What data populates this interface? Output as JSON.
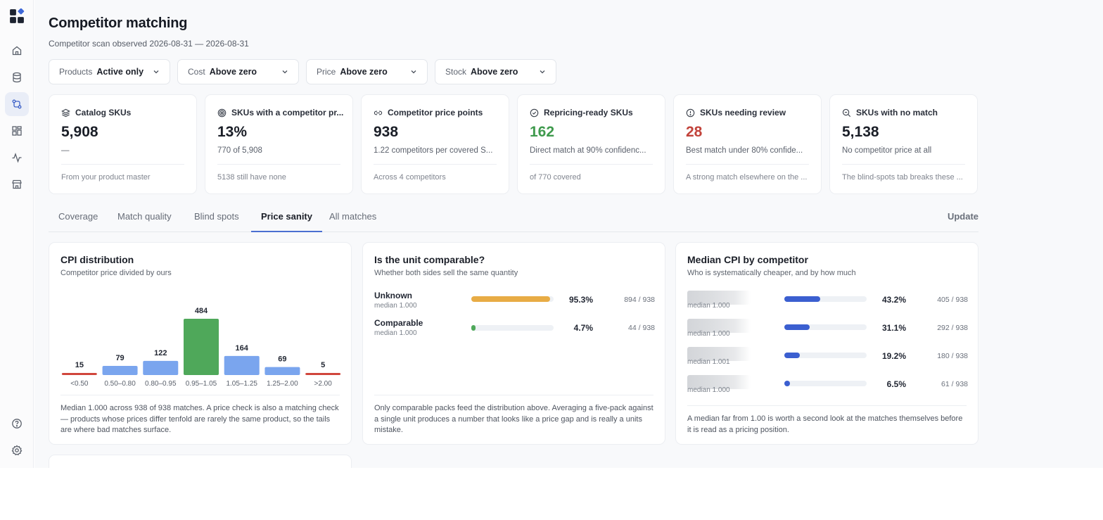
{
  "page": {
    "title": "Competitor matching",
    "subtitle": "Competitor scan observed 2026-08-31 — 2026-08-31"
  },
  "filters": [
    {
      "label": "Products",
      "value": "Active only"
    },
    {
      "label": "Cost",
      "value": "Above zero"
    },
    {
      "label": "Price",
      "value": "Above zero"
    },
    {
      "label": "Stock",
      "value": "Above zero"
    }
  ],
  "sidebar": {
    "items": [
      "grid-logo-icon",
      "home-icon",
      "database-icon",
      "matching-icon",
      "dashboard-icon",
      "activity-icon",
      "store-icon",
      "help-icon",
      "settings-icon"
    ]
  },
  "kpis": [
    {
      "icon": "layers-icon",
      "title": "Catalog SKUs",
      "value": "5,908",
      "sub": "—",
      "foot": "From your product master",
      "tone": "default"
    },
    {
      "icon": "target-icon",
      "title": "SKUs with a competitor pr...",
      "value": "13%",
      "sub": "770 of 5,908",
      "foot": "5138 still have none",
      "tone": "default"
    },
    {
      "icon": "link-icon",
      "title": "Competitor price points",
      "value": "938",
      "sub": "1.22 competitors per covered S...",
      "foot": "Across 4 competitors",
      "tone": "default"
    },
    {
      "icon": "check-circle-icon",
      "title": "Repricing-ready SKUs",
      "value": "162",
      "sub": "Direct match at 90% confidenc...",
      "foot": "of 770 covered",
      "tone": "green"
    },
    {
      "icon": "alert-circle-icon",
      "title": "SKUs needing review",
      "value": "28",
      "sub": "Best match under 80% confide...",
      "foot": "A strong match elsewhere on the ...",
      "tone": "red"
    },
    {
      "icon": "search-zoom-icon",
      "title": "SKUs with no match",
      "value": "5,138",
      "sub": "No competitor price at all",
      "foot": "The blind-spots tab breaks these ...",
      "tone": "default"
    }
  ],
  "tabs": [
    "Coverage",
    "Match quality",
    "Blind spots",
    "Price sanity",
    "All matches"
  ],
  "active_tab": "Price sanity",
  "update_label": "Update",
  "cpi_panel": {
    "title": "CPI distribution",
    "subtitle": "Competitor price divided by ours",
    "note": "Median 1.000 across 938 of 938 matches. A price check is also a matching check — products whose prices differ tenfold are rarely the same product, so the tails are where bad matches surface."
  },
  "chart_data": {
    "type": "bar",
    "title": "CPI distribution",
    "categories": [
      "<0.50",
      "0.50–0.80",
      "0.80–0.95",
      "0.95–1.05",
      "1.05–1.25",
      "1.25–2.00",
      ">2.00"
    ],
    "values": [
      15,
      79,
      122,
      484,
      164,
      69,
      5
    ],
    "colors": [
      "#d0463c",
      "#7aa5ee",
      "#7aa5ee",
      "#4fa85a",
      "#7aa5ee",
      "#7aa5ee",
      "#d0463c"
    ],
    "ylim": [
      0,
      484
    ],
    "grid": false
  },
  "unit_panel": {
    "title": "Is the unit comparable?",
    "subtitle": "Whether both sides sell the same quantity",
    "rows": [
      {
        "label": "Unknown",
        "median": "median 1.000",
        "pct": "95.3%",
        "fraction": 0.953,
        "count": "894 / 938",
        "color": "#e8ac45"
      },
      {
        "label": "Comparable",
        "median": "median 1.000",
        "pct": "4.7%",
        "fraction": 0.047,
        "count": "44 / 938",
        "color": "#4fa85a"
      }
    ],
    "note": "Only comparable packs feed the distribution above. Averaging a five-pack against a single unit produces a number that looks like a price gap and is really a units mistake."
  },
  "competitor_panel": {
    "title": "Median CPI by competitor",
    "subtitle": "Who is systematically cheaper, and by how much",
    "rows": [
      {
        "median": "median 1.000",
        "pct": "43.2%",
        "fraction": 0.432,
        "count": "405 / 938"
      },
      {
        "median": "median 1.000",
        "pct": "31.1%",
        "fraction": 0.311,
        "count": "292 / 938"
      },
      {
        "median": "median 1.001",
        "pct": "19.2%",
        "fraction": 0.192,
        "count": "180 / 938"
      },
      {
        "median": "median 1.000",
        "pct": "6.5%",
        "fraction": 0.065,
        "count": "61 / 938"
      }
    ],
    "bar_color": "#3b5fd0",
    "note": "A median far from 1.00 is worth a second look at the matches themselves before it is read as a pricing position."
  }
}
